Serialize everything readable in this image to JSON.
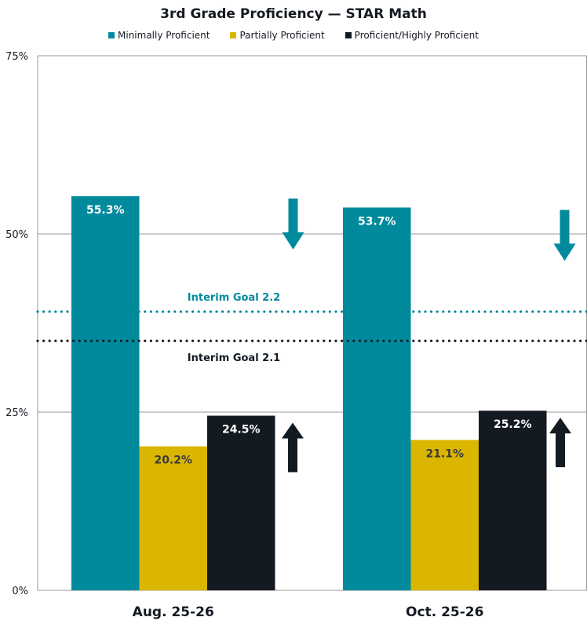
{
  "chart_data": {
    "type": "bar",
    "title": "3rd Grade Proficiency — STAR Math",
    "categories": [
      "Aug. 25-26",
      "Oct. 25-26"
    ],
    "series": [
      {
        "name": "Minimally Proficient",
        "color": "#008a9c",
        "values": [
          55.3,
          53.7
        ],
        "labels": [
          "55.3%",
          "53.7%"
        ],
        "trend": "down"
      },
      {
        "name": "Partially Proficient",
        "color": "#dab600",
        "values": [
          20.2,
          21.1
        ],
        "labels": [
          "20.2%",
          "21.1%"
        ]
      },
      {
        "name": "Proficient/Highly Proficient",
        "color": "#131a22",
        "values": [
          24.5,
          25.2
        ],
        "labels": [
          "24.5%",
          "25.2%"
        ],
        "trend": "up"
      }
    ],
    "ylim": [
      0,
      75
    ],
    "yticks": [
      0,
      25,
      50,
      75
    ],
    "ytick_labels": [
      "0%",
      "25%",
      "50%",
      "75%"
    ],
    "grid": true,
    "legend": "top",
    "reference_lines": [
      {
        "label": "Interim Goal 2.2",
        "value": 39.1,
        "color": "#008a9c",
        "style": "dotted"
      },
      {
        "label": "Interim Goal 2.1",
        "value": 35.0,
        "color": "#131a22",
        "style": "dotted"
      }
    ]
  }
}
